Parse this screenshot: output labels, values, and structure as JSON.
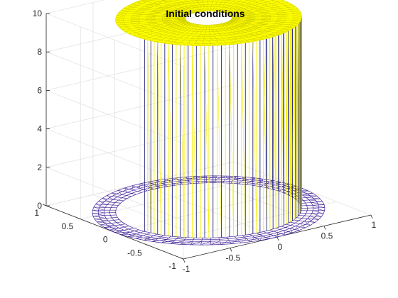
{
  "chart_data": {
    "type": "surface-mesh",
    "title": "Initial conditions",
    "xlabel": "",
    "ylabel": "",
    "zlabel": "",
    "x_ticks": [
      "-1",
      "-0.5",
      "0",
      "0.5",
      "1"
    ],
    "y_ticks": [
      "-1",
      "-0.5",
      "0",
      "0.5",
      "1"
    ],
    "z_ticks": [
      "0",
      "2",
      "4",
      "6",
      "8",
      "10"
    ],
    "xlim": [
      -1,
      1
    ],
    "ylim": [
      -1,
      1
    ],
    "zlim": [
      0,
      10
    ],
    "grid": true,
    "domain": "disk of radius 1",
    "initial_condition": {
      "high_value": 10,
      "low_value": 0,
      "high_region_inner_radius": 0.2,
      "high_region_outer_radius": 0.8
    },
    "colors": {
      "high": "#ffff00",
      "low": "#3c1e96",
      "wall_dark": "#2a2a7a",
      "wall_light": "#f5f000"
    }
  }
}
